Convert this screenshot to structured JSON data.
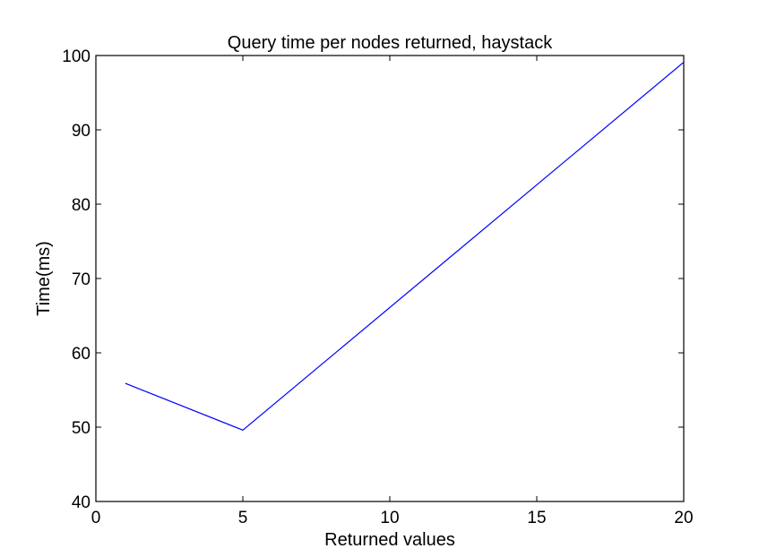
{
  "chart_data": {
    "type": "line",
    "title": "Query time per nodes returned, haystack",
    "xlabel": "Returned values",
    "ylabel": "Time(ms)",
    "xlim": [
      0,
      20
    ],
    "ylim": [
      40,
      100
    ],
    "xticks": [
      0,
      5,
      10,
      15,
      20
    ],
    "yticks": [
      40,
      50,
      60,
      70,
      80,
      90,
      100
    ],
    "grid": false,
    "series": [
      {
        "color": "#0000ff",
        "x": [
          1,
          5,
          20
        ],
        "y": [
          55.9,
          49.6,
          99.1
        ]
      }
    ]
  }
}
